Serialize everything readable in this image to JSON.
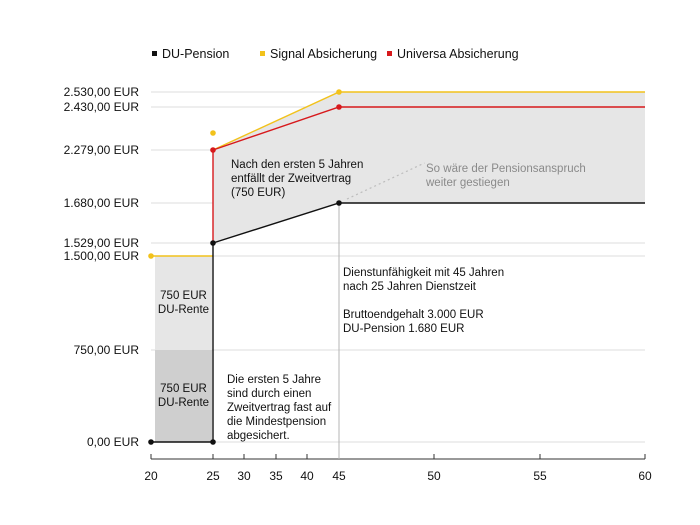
{
  "chart_data": {
    "type": "line",
    "title": "",
    "xlabel": "",
    "ylabel": "",
    "xlim": [
      20,
      60
    ],
    "ylim": [
      0,
      2530
    ],
    "x_ticks": [
      "20",
      "25",
      "30",
      "35",
      "40",
      "45",
      "50",
      "55",
      "60"
    ],
    "y_ticks": [
      {
        "value": 0,
        "label": "0,00 EUR"
      },
      {
        "value": 750,
        "label": "750,00 EUR"
      },
      {
        "value": 1500,
        "label": "1.500,00 EUR"
      },
      {
        "value": 1529,
        "label": "1.529,00 EUR"
      },
      {
        "value": 1680,
        "label": "1.680,00 EUR"
      },
      {
        "value": 2279,
        "label": "2.279,00 EUR"
      },
      {
        "value": 2430,
        "label": "2.430,00 EUR"
      },
      {
        "value": 2530,
        "label": "2.530,00 EUR"
      }
    ],
    "legend_position": "top",
    "series": [
      {
        "name": "DU-Pension",
        "color": "#111111",
        "points": [
          [
            20,
            0
          ],
          [
            25,
            0
          ],
          [
            25,
            1529
          ],
          [
            45,
            1680
          ],
          [
            60,
            1680
          ]
        ]
      },
      {
        "name": "Signal Absicherung",
        "color": "#f2c21b",
        "points": [
          [
            20,
            1500
          ],
          [
            25,
            1500
          ],
          [
            25,
            2279
          ],
          [
            45,
            2530
          ],
          [
            60,
            2530
          ]
        ]
      },
      {
        "name": "Universa Absicherung",
        "color": "#d7191c",
        "points": [
          [
            25,
            2279
          ],
          [
            45,
            2430
          ],
          [
            60,
            2430
          ]
        ]
      }
    ],
    "markers": [
      {
        "series": "DU-Pension",
        "x": 20,
        "y": 0
      },
      {
        "series": "DU-Pension",
        "x": 25,
        "y": 0
      },
      {
        "series": "DU-Pension",
        "x": 25,
        "y": 1529
      },
      {
        "series": "DU-Pension",
        "x": 45,
        "y": 1680
      },
      {
        "series": "Signal Absicherung",
        "x": 20,
        "y": 1500
      },
      {
        "series": "Signal Absicherung",
        "x": 25,
        "y": 2279
      },
      {
        "series": "Signal Absicherung",
        "x": 45,
        "y": 2530
      },
      {
        "series": "Universa Absicherung",
        "x": 25,
        "y": 2279
      },
      {
        "series": "Universa Absicherung",
        "x": 45,
        "y": 2430
      }
    ],
    "blocks": [
      {
        "from": 20,
        "to": 25,
        "y0": 0,
        "y1": 750,
        "color": "#cfcfcf",
        "label_lines": [
          "750 EUR",
          "DU-Rente"
        ]
      },
      {
        "from": 20,
        "to": 25,
        "y0": 750,
        "y1": 1500,
        "color": "#e6e6e6",
        "label_lines": [
          "750 EUR",
          "DU-Rente"
        ]
      }
    ],
    "annotations": {
      "after_five_years": [
        "Nach den ersten 5 Jahren",
        "entfällt der Zweitvertrag",
        "(750 EUR)"
      ],
      "projection": [
        "So wäre der Pensionsanspruch",
        "weiter gestiegen"
      ],
      "disability": [
        "Dienstunfähigkeit mit 45 Jahren",
        "nach 25 Jahren Dienstzeit",
        "",
        "Bruttoendgehalt 3.000 EUR",
        "DU-Pension 1.680 EUR"
      ],
      "first_five_years": [
        "Die ersten 5 Jahre",
        "sind durch einen",
        "Zweitvertrag fast auf",
        "die Mindestpension",
        "abgesichert."
      ]
    }
  }
}
